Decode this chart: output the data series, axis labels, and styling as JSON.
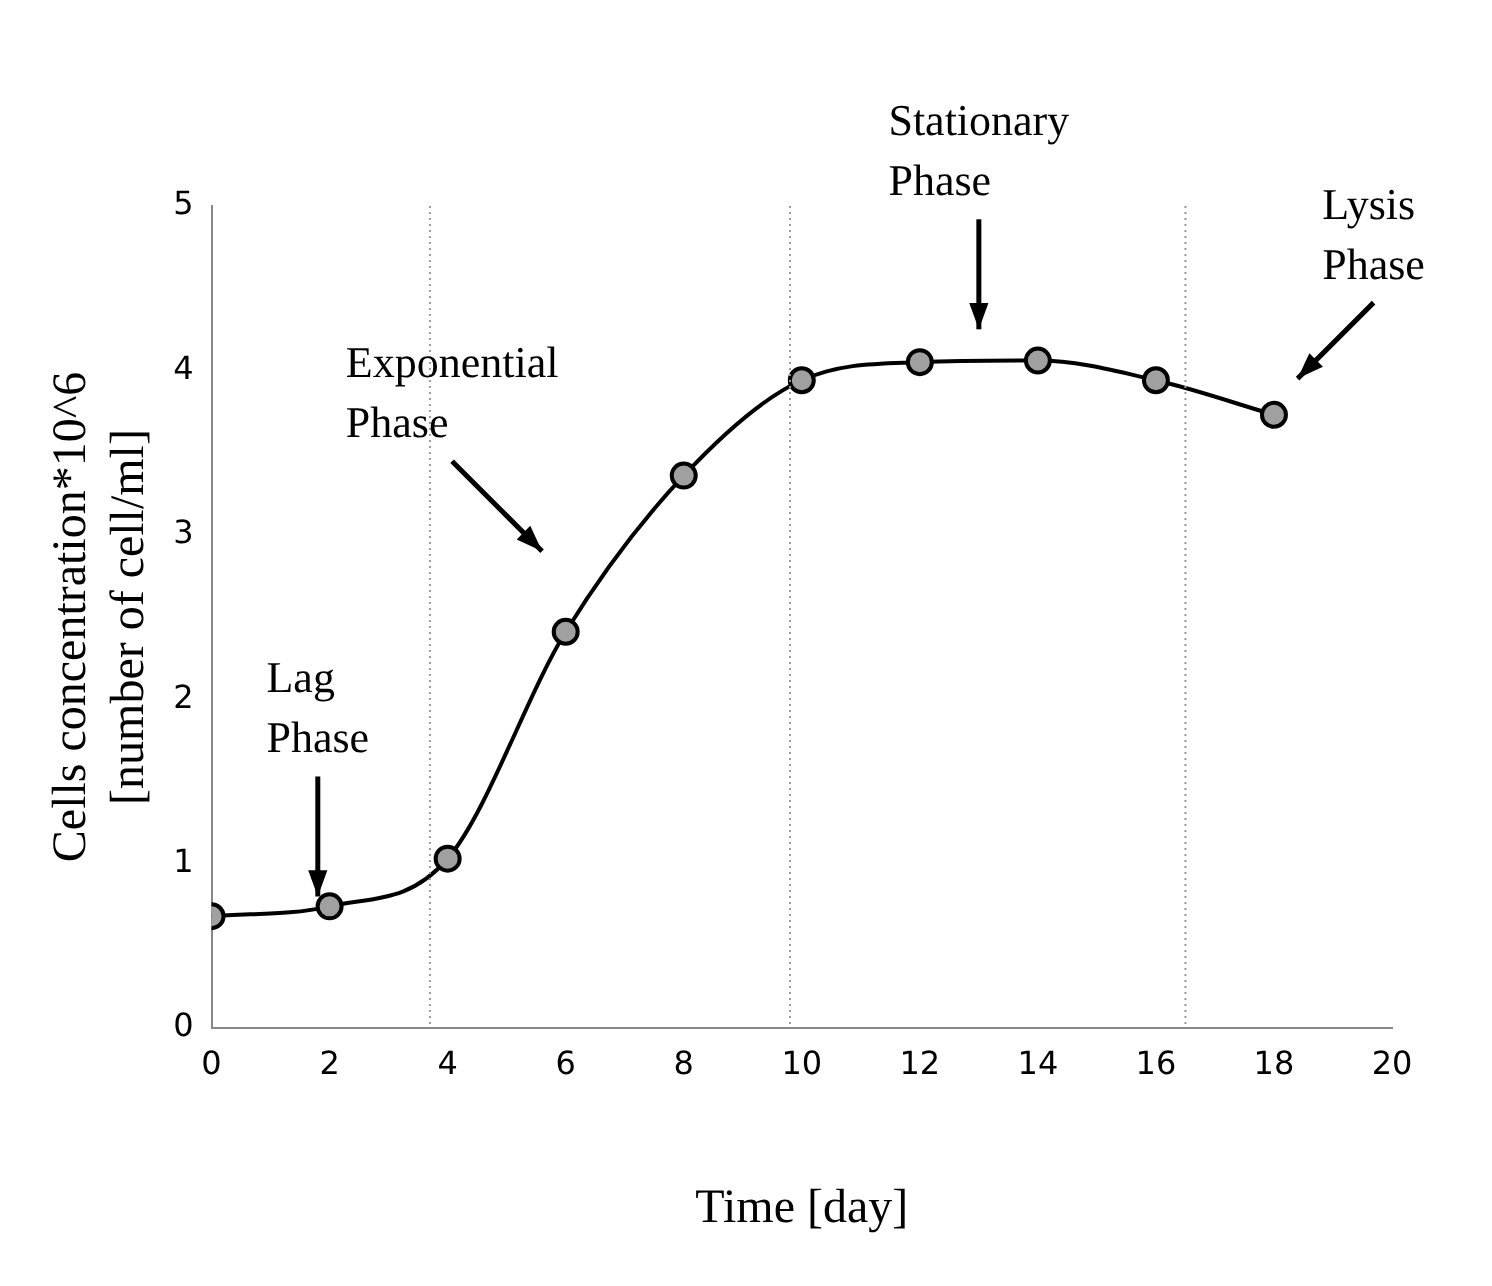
{
  "chart_data": {
    "type": "line",
    "xlabel": "Time [day]",
    "ylabel": "Cells concentration*10^6\n[number of cell/ml]",
    "x": [
      0,
      2,
      4,
      6,
      8,
      10,
      12,
      14,
      16,
      18
    ],
    "series": [
      {
        "color": "#000000",
        "values": [
          0.68,
          0.74,
          1.03,
          2.41,
          3.36,
          3.94,
          4.05,
          4.06,
          3.94,
          3.73
        ]
      }
    ],
    "xlim": [
      0,
      20
    ],
    "xticks": [
      0,
      2,
      4,
      6,
      8,
      10,
      12,
      14,
      16,
      18,
      20
    ],
    "ylim": [
      0,
      5
    ],
    "yticks": [
      0,
      1,
      2,
      3,
      4,
      5
    ],
    "grid": false,
    "legend": false,
    "marker": "circle",
    "line_style": "solid",
    "ref_lines": [
      {
        "axis": "x",
        "value": 3.7,
        "color": "#999999",
        "line_style": "dotted"
      },
      {
        "axis": "x",
        "value": 9.8,
        "color": "#999999",
        "line_style": "dotted"
      },
      {
        "axis": "x",
        "value": 16.5,
        "color": "#999999",
        "line_style": "dotted"
      }
    ],
    "annotations": [
      {
        "text": "Lag Phase",
        "x": 1.8,
        "y": 0.8
      },
      "Exponential Phase",
      "Stationary Phase",
      "Lysis Phase"
    ]
  }
}
